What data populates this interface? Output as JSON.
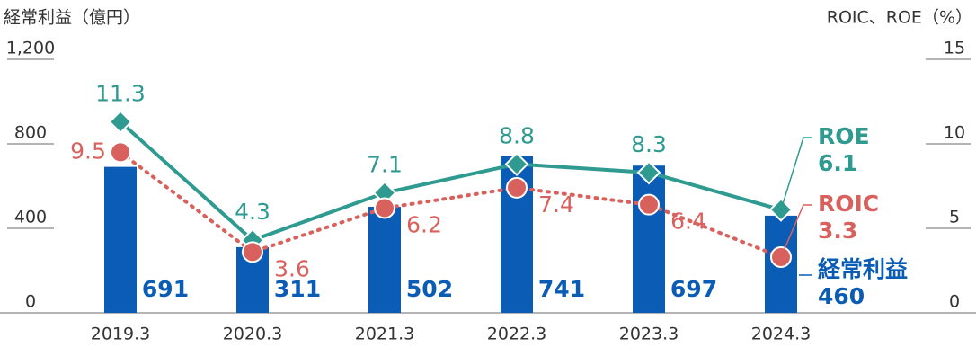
{
  "chart_data": {
    "type": "bar",
    "y_label": "経常利益（億円）",
    "y2_label": "ROIC、ROE（%）",
    "categories": [
      "2019.3",
      "2020.3",
      "2021.3",
      "2022.3",
      "2023.3",
      "2024.3"
    ],
    "series": [
      {
        "name": "経常利益",
        "type": "bar",
        "color": "#0b5cb5",
        "values": [
          691,
          311,
          502,
          741,
          697,
          460
        ]
      },
      {
        "name": "ROE",
        "type": "line",
        "axis": "y2",
        "marker": "diamond",
        "color": "#2e9a90",
        "values": [
          11.3,
          4.3,
          7.1,
          8.8,
          8.3,
          6.1
        ]
      },
      {
        "name": "ROIC",
        "type": "line",
        "axis": "y2",
        "marker": "circle",
        "dashed": true,
        "color": "#d9615d",
        "values": [
          9.5,
          3.6,
          6.2,
          7.4,
          6.4,
          3.3
        ]
      }
    ],
    "ylim": [
      0,
      1200
    ],
    "yticks": [
      0,
      400,
      800,
      {
        "value": 1200,
        "label": "1,200"
      }
    ],
    "y2lim": [
      0,
      15
    ],
    "y2ticks": [
      0,
      5,
      10,
      15
    ]
  }
}
